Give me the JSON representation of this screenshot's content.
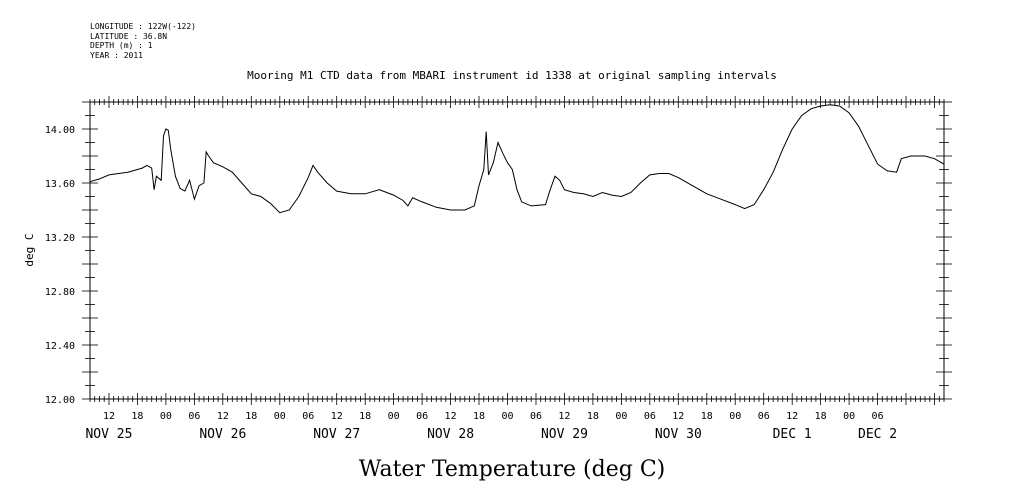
{
  "meta": {
    "longitude": "LONGITUDE : 122W(-122)",
    "latitude": "LATITUDE : 36.8N",
    "depth": "DEPTH (m) : 1",
    "year": "YEAR : 2011"
  },
  "chart_data": {
    "type": "line",
    "title": "Mooring M1 CTD data from MBARI instrument id 1338 at original sampling intervals",
    "ylabel": "deg C",
    "xlabel": "Water Temperature (deg C)",
    "ylim": [
      12.0,
      14.2
    ],
    "xlim": [
      "2011-11-25T08:00",
      "2011-12-02T20:00"
    ],
    "y_ticks": [
      "12.00",
      "12.40",
      "12.80",
      "13.20",
      "13.60",
      "14.00"
    ],
    "x_hour_labels": [
      {
        "t": "2011-11-25T12:00",
        "label": "12"
      },
      {
        "t": "2011-11-25T18:00",
        "label": "18"
      },
      {
        "t": "2011-11-26T00:00",
        "label": "00"
      },
      {
        "t": "2011-11-26T06:00",
        "label": "06"
      },
      {
        "t": "2011-11-26T12:00",
        "label": "12"
      },
      {
        "t": "2011-11-26T18:00",
        "label": "18"
      },
      {
        "t": "2011-11-27T00:00",
        "label": "00"
      },
      {
        "t": "2011-11-27T06:00",
        "label": "06"
      },
      {
        "t": "2011-11-27T12:00",
        "label": "12"
      },
      {
        "t": "2011-11-27T18:00",
        "label": "18"
      },
      {
        "t": "2011-11-28T00:00",
        "label": "00"
      },
      {
        "t": "2011-11-28T06:00",
        "label": "06"
      },
      {
        "t": "2011-11-28T12:00",
        "label": "12"
      },
      {
        "t": "2011-11-28T18:00",
        "label": "18"
      },
      {
        "t": "2011-11-29T00:00",
        "label": "00"
      },
      {
        "t": "2011-11-29T06:00",
        "label": "06"
      },
      {
        "t": "2011-11-29T12:00",
        "label": "12"
      },
      {
        "t": "2011-11-29T18:00",
        "label": "18"
      },
      {
        "t": "2011-11-30T00:00",
        "label": "00"
      },
      {
        "t": "2011-11-30T06:00",
        "label": "06"
      },
      {
        "t": "2011-11-30T12:00",
        "label": "12"
      },
      {
        "t": "2011-11-30T18:00",
        "label": "18"
      },
      {
        "t": "2011-12-01T00:00",
        "label": "00"
      },
      {
        "t": "2011-12-01T06:00",
        "label": "06"
      },
      {
        "t": "2011-12-01T12:00",
        "label": "12"
      },
      {
        "t": "2011-12-01T18:00",
        "label": "18"
      },
      {
        "t": "2011-12-02T00:00",
        "label": "00"
      },
      {
        "t": "2011-12-02T06:00",
        "label": "06"
      }
    ],
    "x_date_labels": [
      {
        "t": "2011-11-25T12:00",
        "label": "NOV 25"
      },
      {
        "t": "2011-11-26T12:00",
        "label": "NOV 26"
      },
      {
        "t": "2011-11-27T12:00",
        "label": "NOV 27"
      },
      {
        "t": "2011-11-28T12:00",
        "label": "NOV 28"
      },
      {
        "t": "2011-11-29T12:00",
        "label": "NOV 29"
      },
      {
        "t": "2011-11-30T12:00",
        "label": "NOV 30"
      },
      {
        "t": "2011-12-01T12:00",
        "label": "DEC  1"
      },
      {
        "t": "2011-12-02T06:00",
        "label": "DEC  2"
      }
    ],
    "series": [
      {
        "points": [
          [
            "2011-11-25T08:00",
            13.61
          ],
          [
            "2011-11-25T10:00",
            13.63
          ],
          [
            "2011-11-25T12:00",
            13.66
          ],
          [
            "2011-11-25T14:00",
            13.67
          ],
          [
            "2011-11-25T16:00",
            13.68
          ],
          [
            "2011-11-25T18:00",
            13.7
          ],
          [
            "2011-11-25T19:00",
            13.71
          ],
          [
            "2011-11-25T20:00",
            13.73
          ],
          [
            "2011-11-25T21:00",
            13.71
          ],
          [
            "2011-11-25T21:30",
            13.55
          ],
          [
            "2011-11-25T22:00",
            13.65
          ],
          [
            "2011-11-25T23:00",
            13.62
          ],
          [
            "2011-11-25T23:30",
            13.95
          ],
          [
            "2011-11-26T00:00",
            14.0
          ],
          [
            "2011-11-26T00:30",
            13.99
          ],
          [
            "2011-11-26T01:00",
            13.85
          ],
          [
            "2011-11-26T02:00",
            13.65
          ],
          [
            "2011-11-26T03:00",
            13.56
          ],
          [
            "2011-11-26T04:00",
            13.54
          ],
          [
            "2011-11-26T05:00",
            13.62
          ],
          [
            "2011-11-26T06:00",
            13.48
          ],
          [
            "2011-11-26T07:00",
            13.58
          ],
          [
            "2011-11-26T08:00",
            13.6
          ],
          [
            "2011-11-26T08:30",
            13.83
          ],
          [
            "2011-11-26T09:00",
            13.8
          ],
          [
            "2011-11-26T10:00",
            13.75
          ],
          [
            "2011-11-26T12:00",
            13.72
          ],
          [
            "2011-11-26T14:00",
            13.68
          ],
          [
            "2011-11-26T16:00",
            13.6
          ],
          [
            "2011-11-26T18:00",
            13.52
          ],
          [
            "2011-11-26T20:00",
            13.5
          ],
          [
            "2011-11-26T22:00",
            13.45
          ],
          [
            "2011-11-27T00:00",
            13.38
          ],
          [
            "2011-11-27T02:00",
            13.4
          ],
          [
            "2011-11-27T04:00",
            13.5
          ],
          [
            "2011-11-27T06:00",
            13.64
          ],
          [
            "2011-11-27T07:00",
            13.73
          ],
          [
            "2011-11-27T08:00",
            13.68
          ],
          [
            "2011-11-27T10:00",
            13.6
          ],
          [
            "2011-11-27T12:00",
            13.54
          ],
          [
            "2011-11-27T15:00",
            13.52
          ],
          [
            "2011-11-27T18:00",
            13.52
          ],
          [
            "2011-11-27T21:00",
            13.55
          ],
          [
            "2011-11-28T00:00",
            13.51
          ],
          [
            "2011-11-28T02:00",
            13.47
          ],
          [
            "2011-11-28T03:00",
            13.43
          ],
          [
            "2011-11-28T04:00",
            13.49
          ],
          [
            "2011-11-28T06:00",
            13.46
          ],
          [
            "2011-11-28T09:00",
            13.42
          ],
          [
            "2011-11-28T12:00",
            13.4
          ],
          [
            "2011-11-28T15:00",
            13.4
          ],
          [
            "2011-11-28T17:00",
            13.43
          ],
          [
            "2011-11-28T18:00",
            13.58
          ],
          [
            "2011-11-28T19:00",
            13.7
          ],
          [
            "2011-11-28T19:30",
            13.98
          ],
          [
            "2011-11-28T20:00",
            13.66
          ],
          [
            "2011-11-28T21:00",
            13.75
          ],
          [
            "2011-11-28T22:00",
            13.9
          ],
          [
            "2011-11-28T23:00",
            13.82
          ],
          [
            "2011-11-29T00:00",
            13.75
          ],
          [
            "2011-11-29T01:00",
            13.7
          ],
          [
            "2011-11-29T02:00",
            13.55
          ],
          [
            "2011-11-29T03:00",
            13.46
          ],
          [
            "2011-11-29T05:00",
            13.43
          ],
          [
            "2011-11-29T08:00",
            13.44
          ],
          [
            "2011-11-29T09:00",
            13.55
          ],
          [
            "2011-11-29T10:00",
            13.65
          ],
          [
            "2011-11-29T11:00",
            13.62
          ],
          [
            "2011-11-29T12:00",
            13.55
          ],
          [
            "2011-11-29T14:00",
            13.53
          ],
          [
            "2011-11-29T16:00",
            13.52
          ],
          [
            "2011-11-29T18:00",
            13.5
          ],
          [
            "2011-11-29T20:00",
            13.53
          ],
          [
            "2011-11-29T22:00",
            13.51
          ],
          [
            "2011-11-30T00:00",
            13.5
          ],
          [
            "2011-11-30T02:00",
            13.53
          ],
          [
            "2011-11-30T04:00",
            13.6
          ],
          [
            "2011-11-30T06:00",
            13.66
          ],
          [
            "2011-11-30T08:00",
            13.67
          ],
          [
            "2011-11-30T10:00",
            13.67
          ],
          [
            "2011-11-30T12:00",
            13.64
          ],
          [
            "2011-11-30T15:00",
            13.58
          ],
          [
            "2011-11-30T18:00",
            13.52
          ],
          [
            "2011-11-30T21:00",
            13.48
          ],
          [
            "2011-12-01T00:00",
            13.44
          ],
          [
            "2011-12-01T02:00",
            13.41
          ],
          [
            "2011-12-01T04:00",
            13.44
          ],
          [
            "2011-12-01T06:00",
            13.55
          ],
          [
            "2011-12-01T08:00",
            13.68
          ],
          [
            "2011-12-01T10:00",
            13.85
          ],
          [
            "2011-12-01T12:00",
            14.0
          ],
          [
            "2011-12-01T14:00",
            14.1
          ],
          [
            "2011-12-01T16:00",
            14.15
          ],
          [
            "2011-12-01T18:00",
            14.17
          ],
          [
            "2011-12-01T20:00",
            14.18
          ],
          [
            "2011-12-01T22:00",
            14.17
          ],
          [
            "2011-12-02T00:00",
            14.12
          ],
          [
            "2011-12-02T02:00",
            14.02
          ],
          [
            "2011-12-02T04:00",
            13.88
          ],
          [
            "2011-12-02T06:00",
            13.74
          ],
          [
            "2011-12-02T08:00",
            13.69
          ],
          [
            "2011-12-02T10:00",
            13.68
          ],
          [
            "2011-12-02T11:00",
            13.78
          ],
          [
            "2011-12-02T13:00",
            13.8
          ],
          [
            "2011-12-02T16:00",
            13.8
          ],
          [
            "2011-12-02T18:00",
            13.78
          ],
          [
            "2011-12-02T20:00",
            13.74
          ]
        ]
      }
    ]
  }
}
